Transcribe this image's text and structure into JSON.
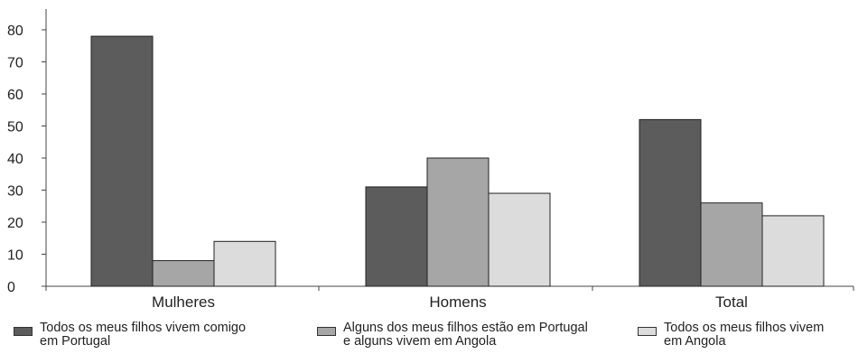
{
  "chart_data": {
    "type": "bar",
    "categories": [
      "Mulheres",
      "Homens",
      "Total"
    ],
    "series": [
      {
        "name": "Todos os meus filhos vivem comigo em Portugal",
        "values": [
          78,
          31,
          52
        ],
        "color": "#5c5c5c"
      },
      {
        "name": "Alguns dos meus filhos estão em Portugal e alguns vivem em Angola",
        "values": [
          8,
          40,
          26
        ],
        "color": "#a6a6a6"
      },
      {
        "name": "Todos os meus filhos vivem em Angola",
        "values": [
          14,
          29,
          22
        ],
        "color": "#dcdcdc"
      }
    ],
    "y_ticks": [
      "0",
      "10",
      "20",
      "30",
      "40",
      "50",
      "60",
      "70",
      "80"
    ],
    "ylim": [
      0,
      80
    ],
    "grid": false,
    "legend_position": "bottom",
    "title": "",
    "xlabel": "",
    "ylabel": ""
  },
  "legend": {
    "item0": "Todos os meus filhos vivem comigo\nem Portugal",
    "item1": "Alguns dos meus filhos estão em Portugal\ne alguns vivem em Angola",
    "item2": "Todos os meus filhos vivem\nem Angola"
  }
}
